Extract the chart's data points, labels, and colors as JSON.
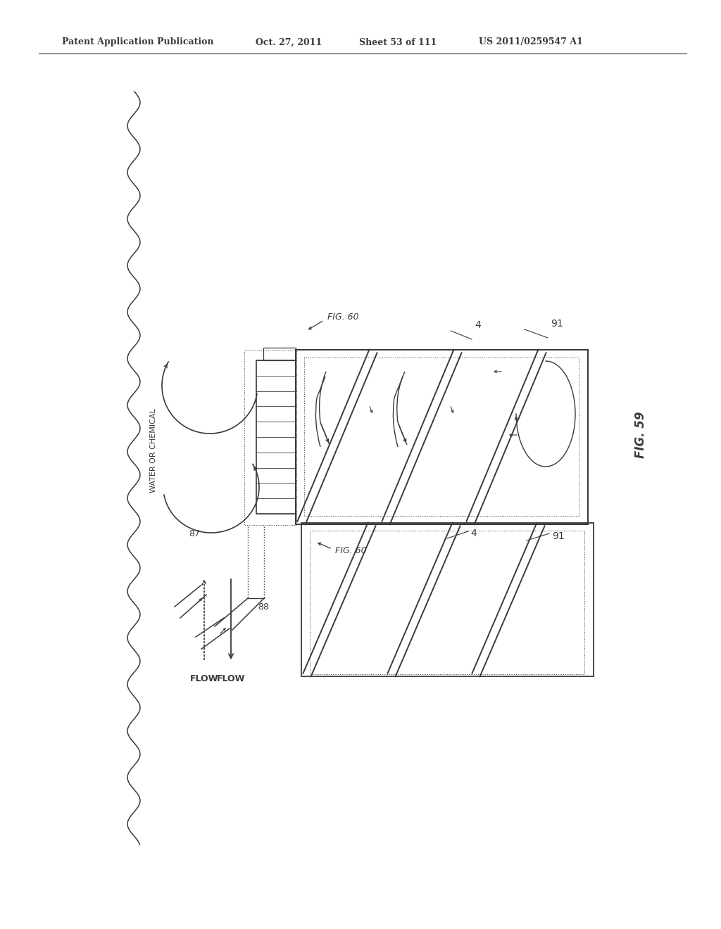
{
  "bg_color": "#ffffff",
  "line_color": "#3a3a3a",
  "header_text": "Patent Application Publication",
  "header_date": "Oct. 27, 2011",
  "header_sheet": "Sheet 53 of 111",
  "header_patent": "US 2011/0259547 A1",
  "fig_label": "FIG. 59",
  "fig60_label_top": "FIG. 60",
  "fig60_label_bottom": "FIG. 60",
  "label_4_top": "4",
  "label_91_top": "91",
  "label_4_bottom": "4",
  "label_91_bottom": "91",
  "label_87": "87",
  "label_88": "88",
  "flow_up": "FLOW",
  "flow_down": "FLOW",
  "water_chem_label": "WATER OR CHEMICAL"
}
